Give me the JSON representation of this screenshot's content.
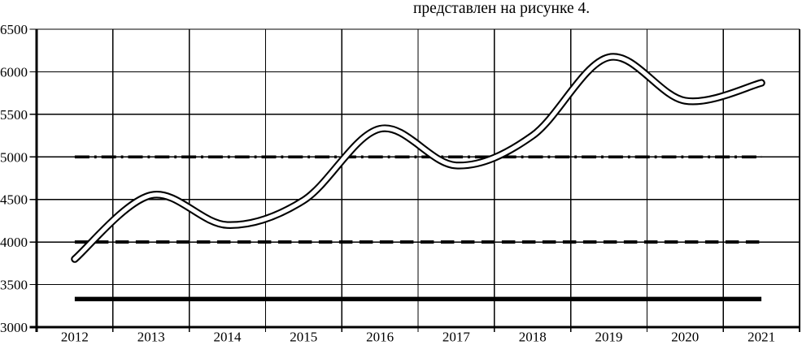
{
  "page": {
    "caption_line": "представлен на рисунке 4."
  },
  "chart_data": {
    "type": "line",
    "title": "представлен на рисунке 4.",
    "categories": [
      2012,
      2013,
      2014,
      2015,
      2016,
      2017,
      2018,
      2019,
      2020,
      2021
    ],
    "series": [
      {
        "name": "main-trend-curve",
        "style": "thick-white-cored-outline",
        "color": "#000000",
        "values": [
          3800,
          4550,
          4200,
          4490,
          5330,
          4900,
          5250,
          6170,
          5660,
          5870
        ]
      }
    ],
    "reference_lines": [
      {
        "name": "dash-dot-reference-line",
        "style": "dash-dot",
        "value": 5000
      },
      {
        "name": "dashed-reference-line",
        "style": "dashed",
        "value": 4000
      },
      {
        "name": "thick-solid-reference-line",
        "style": "solid-thick",
        "value": 3330
      }
    ],
    "xlabel": "",
    "ylabel": "",
    "ylim": [
      3000,
      6500
    ],
    "yticks": [
      3000,
      3500,
      4000,
      4500,
      5000,
      5500,
      6000,
      6500
    ],
    "grid": true,
    "legend": "none",
    "colors": {
      "foreground": "#000000",
      "background": "#ffffff"
    }
  }
}
